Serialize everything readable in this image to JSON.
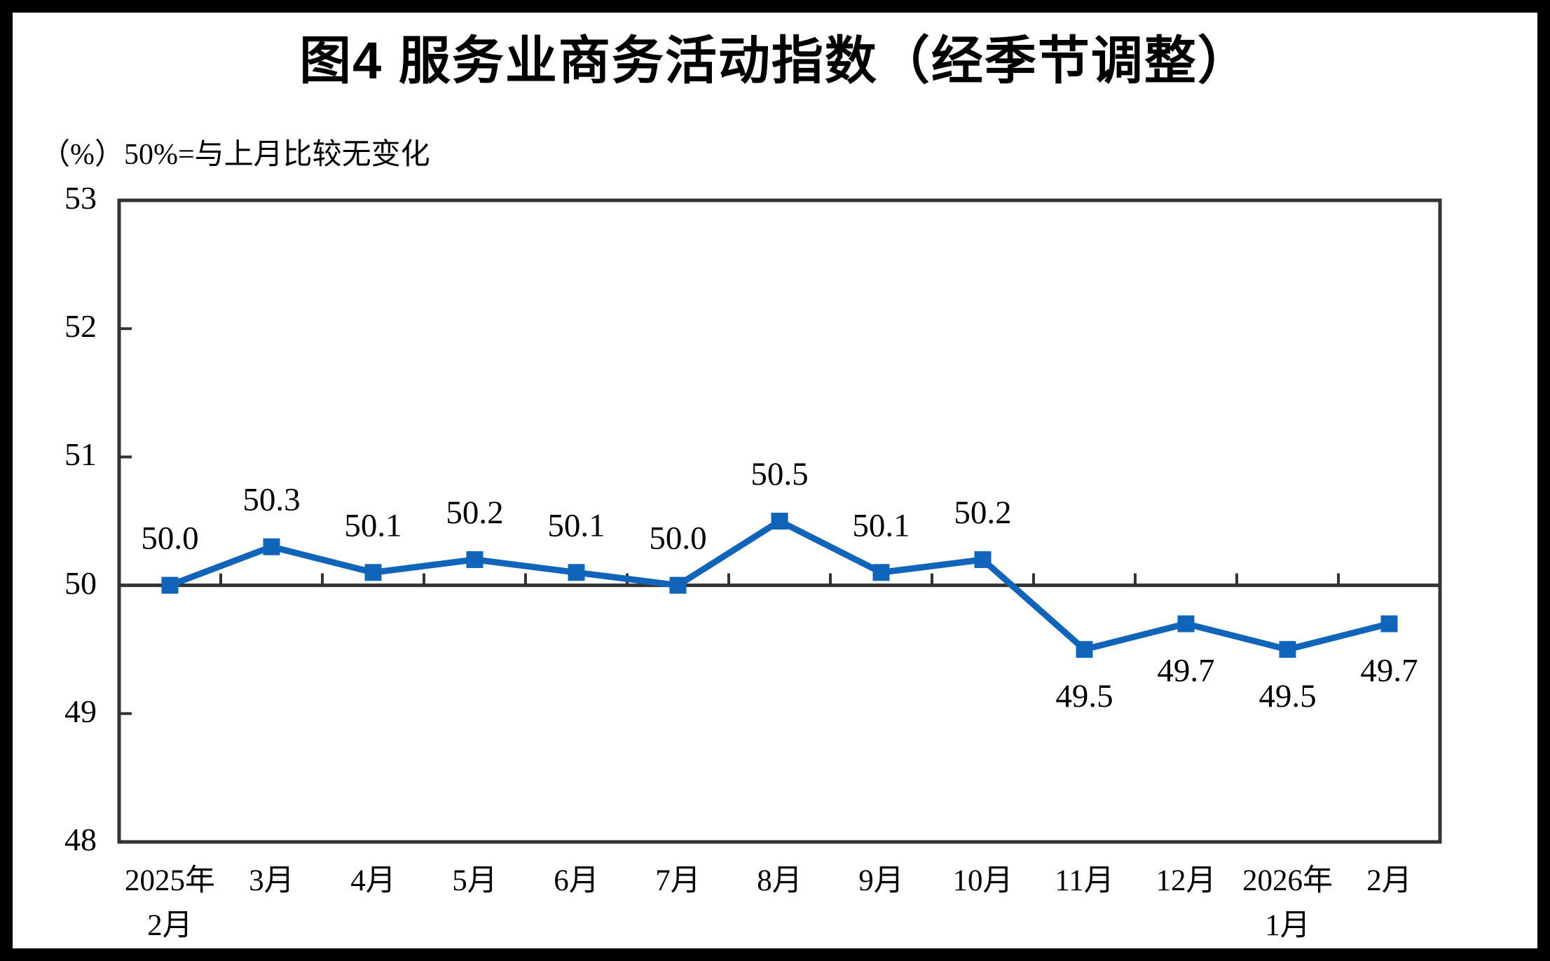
{
  "chart_data": {
    "type": "line",
    "title": "图4 服务业商务活动指数（经季节调整）",
    "subtitle": "（%）50%=与上月比较无变化",
    "categories": [
      "2025年\n2月",
      "3月",
      "4月",
      "5月",
      "6月",
      "7月",
      "8月",
      "9月",
      "10月",
      "11月",
      "12月",
      "2026年\n1月",
      "2月"
    ],
    "values": [
      50.0,
      50.3,
      50.1,
      50.2,
      50.1,
      50.0,
      50.5,
      50.1,
      50.2,
      49.5,
      49.7,
      49.5,
      49.7
    ],
    "data_labels": [
      "50.0",
      "50.3",
      "50.1",
      "50.2",
      "50.1",
      "50.0",
      "50.5",
      "50.1",
      "50.2",
      "49.5",
      "49.7",
      "49.5",
      "49.7"
    ],
    "xlabel": "",
    "ylabel": "",
    "ylim": [
      48,
      53
    ],
    "yticks": [
      48,
      49,
      50,
      51,
      52,
      53
    ],
    "reference_line": 50,
    "grid": false,
    "legend": "none",
    "colors": {
      "series_line": "#1065BB",
      "marker_fill": "#1065BB",
      "axis": "#333333",
      "text": "#000000",
      "figure_border": "#000000"
    }
  }
}
